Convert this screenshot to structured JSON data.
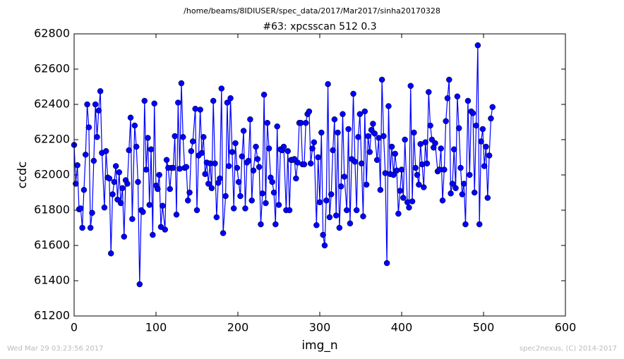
{
  "chart_data": {
    "type": "line",
    "suptitle": "/home/beams/8IDIUSER/spec_data/2017/Mar2017/sinha20170328",
    "title": "#63: xpcsscan 512 0.3",
    "xlabel": "img_n",
    "ylabel": "ccdc",
    "footer_left": "Wed Mar 29 03:23:56 2017",
    "footer_right": "spec2nexus, (C) 2014-2017",
    "xlim": [
      0,
      600
    ],
    "xticks": [
      0,
      100,
      200,
      300,
      400,
      500,
      600
    ],
    "ylim": [
      61200,
      62800
    ],
    "yticks": [
      61200,
      61400,
      61600,
      61800,
      62000,
      62200,
      62400,
      62600,
      62800
    ],
    "grid": false,
    "x": [
      0,
      2,
      4,
      6,
      8,
      10,
      12,
      14,
      16,
      18,
      20,
      22,
      24,
      26,
      28,
      30,
      32,
      34,
      37,
      39,
      41,
      43,
      45,
      47,
      49,
      51,
      53,
      55,
      57,
      59,
      61,
      63,
      65,
      67,
      69,
      71,
      74,
      76,
      78,
      80,
      82,
      84,
      86,
      88,
      90,
      92,
      94,
      96,
      98,
      100,
      102,
      104,
      106,
      108,
      111,
      113,
      115,
      117,
      119,
      121,
      123,
      125,
      127,
      129,
      131,
      133,
      135,
      137,
      139,
      141,
      143,
      145,
      148,
      150,
      152,
      154,
      156,
      158,
      160,
      162,
      164,
      166,
      168,
      170,
      172,
      174,
      176,
      178,
      180,
      182,
      185,
      187,
      189,
      191,
      193,
      195,
      197,
      199,
      201,
      203,
      205,
      207,
      209,
      211,
      213,
      215,
      217,
      219,
      222,
      224,
      226,
      228,
      230,
      232,
      234,
      236,
      238,
      240,
      242,
      244,
      246,
      248,
      250,
      252,
      254,
      256,
      259,
      261,
      263,
      265,
      267,
      269,
      271,
      273,
      275,
      277,
      279,
      281,
      283,
      285,
      287,
      289,
      291,
      293,
      296,
      298,
      300,
      302,
      304,
      306,
      308,
      310,
      312,
      314,
      316,
      318,
      320,
      322,
      324,
      326,
      328,
      330,
      333,
      335,
      337,
      339,
      341,
      343,
      345,
      347,
      349,
      351,
      353,
      355,
      357,
      359,
      361,
      363,
      365,
      367,
      370,
      372,
      374,
      376,
      378,
      380,
      382,
      384,
      386,
      388,
      390,
      392,
      394,
      396,
      398,
      400,
      402,
      404,
      407,
      409,
      411,
      413,
      415,
      417,
      419,
      421,
      423,
      425,
      427,
      429,
      431,
      433,
      435,
      437,
      439,
      441,
      444,
      446,
      448,
      450,
      452,
      454,
      456,
      458,
      460,
      462,
      464,
      466,
      468,
      470,
      472,
      474,
      476,
      478,
      481,
      483,
      485,
      487,
      489,
      491,
      493,
      495,
      497,
      499,
      501,
      503,
      505,
      507,
      509,
      511
    ],
    "series": [
      {
        "color": "#0000ff",
        "values": [
          62170,
          61950,
          62055,
          61805,
          61810,
          61700,
          61915,
          62115,
          62400,
          62270,
          61700,
          61785,
          62080,
          62400,
          62215,
          62365,
          62475,
          62125,
          61815,
          62135,
          61985,
          61980,
          61555,
          61890,
          61960,
          62050,
          61860,
          62015,
          61840,
          61925,
          61650,
          61970,
          61950,
          62140,
          62325,
          61750,
          62280,
          62160,
          61960,
          61380,
          61800,
          61790,
          62420,
          62030,
          62210,
          61830,
          62145,
          61660,
          62405,
          61940,
          61920,
          62000,
          61705,
          61825,
          61690,
          62085,
          62040,
          61920,
          62040,
          62040,
          62220,
          61775,
          62410,
          62035,
          62520,
          62215,
          62040,
          62045,
          61855,
          61900,
          62135,
          62190,
          62375,
          61800,
          62110,
          62370,
          62125,
          62215,
          62005,
          62070,
          61950,
          62065,
          61925,
          62420,
          62065,
          61760,
          61955,
          61980,
          62490,
          61670,
          61880,
          62410,
          62050,
          62435,
          62130,
          61810,
          62180,
          62040,
          61960,
          61880,
          62105,
          62250,
          61810,
          62070,
          62080,
          62315,
          61855,
          62025,
          62160,
          62090,
          62045,
          61720,
          61895,
          62455,
          61840,
          62295,
          62150,
          61985,
          61960,
          61900,
          61720,
          62275,
          61830,
          62145,
          62140,
          62160,
          61800,
          62135,
          61800,
          62085,
          62085,
          62090,
          61980,
          62070,
          62295,
          62295,
          62060,
          62060,
          62295,
          62345,
          62360,
          62065,
          62150,
          62185,
          61715,
          62100,
          61845,
          62240,
          61660,
          61600,
          61855,
          62515,
          61760,
          61890,
          62140,
          62315,
          61770,
          62240,
          61700,
          61935,
          62345,
          61990,
          61800,
          62260,
          61725,
          62090,
          62460,
          62075,
          61800,
          62215,
          62345,
          62065,
          61765,
          62360,
          61945,
          62220,
          62130,
          62255,
          62290,
          62235,
          62085,
          62210,
          61915,
          62540,
          62220,
          62010,
          61500,
          62390,
          62005,
          62160,
          62000,
          62120,
          62025,
          61780,
          61910,
          62030,
          61870,
          62200,
          61845,
          61815,
          62505,
          61850,
          62240,
          62040,
          62000,
          61945,
          62175,
          62060,
          61930,
          62185,
          62065,
          62470,
          62280,
          62200,
          62155,
          62180,
          62020,
          62030,
          62150,
          61855,
          62030,
          62305,
          62435,
          62540,
          61895,
          61950,
          62145,
          61925,
          62445,
          62265,
          62040,
          61890,
          61950,
          61720,
          62420,
          62000,
          62360,
          62350,
          61900,
          62280,
          62735,
          61720,
          62190,
          62260,
          62050,
          62160,
          61870,
          62110,
          62320,
          62385
        ]
      }
    ]
  }
}
